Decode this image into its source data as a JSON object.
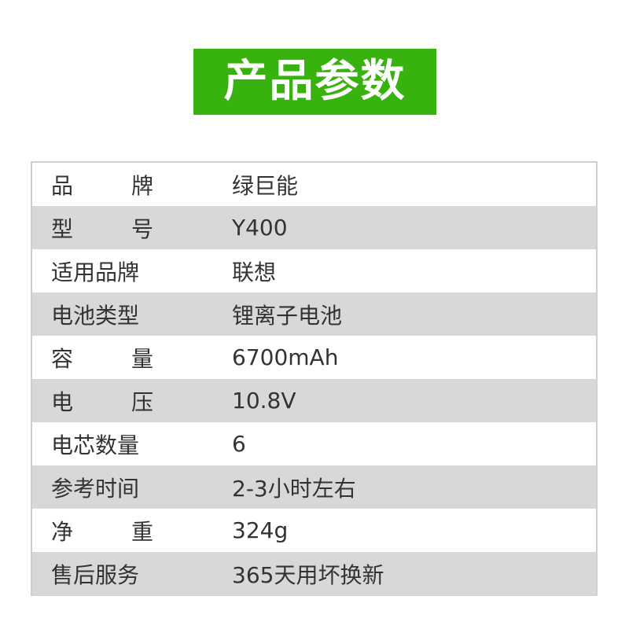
{
  "title": "产品参数",
  "rows": [
    {
      "label": "品牌",
      "value": "绿巨能",
      "spread": true
    },
    {
      "label": "型号",
      "value": "Y400",
      "spread": true
    },
    {
      "label": "适用品牌",
      "value": "联想"
    },
    {
      "label": "电池类型",
      "value": "锂离子电池"
    },
    {
      "label": "容量",
      "value": "6700mAh",
      "spread": true
    },
    {
      "label": "电压",
      "value": "10.8V",
      "spread": true
    },
    {
      "label": "电芯数量",
      "value": "6"
    },
    {
      "label": "参考时间",
      "value": "2-3小时左右"
    },
    {
      "label": "净重",
      "value": "324g",
      "spread": true
    },
    {
      "label": "售后服务",
      "value": "365天用坏换新"
    }
  ],
  "colors": {
    "accent": "#37b20f",
    "stripe": "#d8d8d8"
  }
}
